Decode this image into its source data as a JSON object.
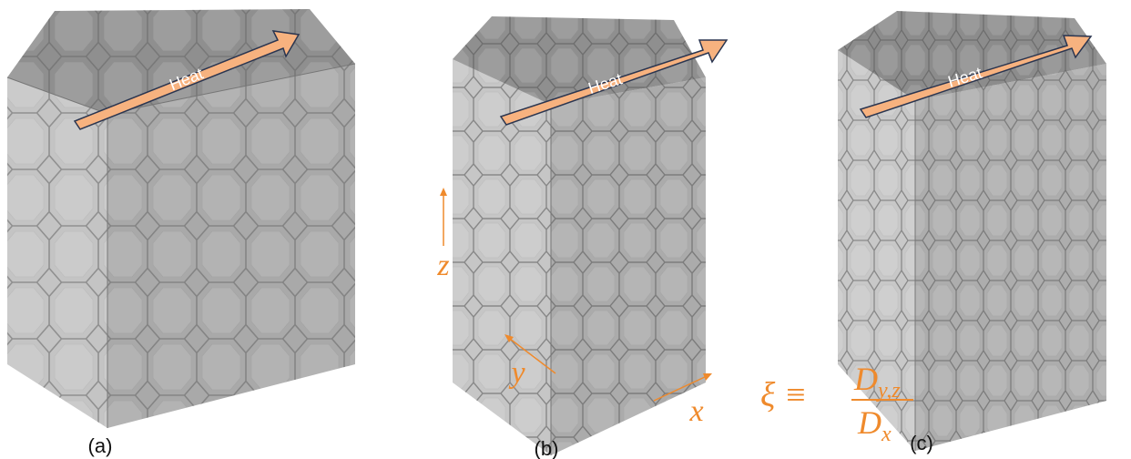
{
  "panels": [
    {
      "label": "(a)",
      "arrow": "Heat"
    },
    {
      "label": "(b)",
      "arrow": "Heat"
    },
    {
      "label": "(c)",
      "arrow": "Heat"
    }
  ],
  "axes": {
    "x": "x",
    "y": "y",
    "z": "z"
  },
  "formula": {
    "lhs": "ξ ≡",
    "numerator": "D",
    "numerator_sub": "y,z",
    "denominator": "D",
    "denominator_sub": "x"
  }
}
